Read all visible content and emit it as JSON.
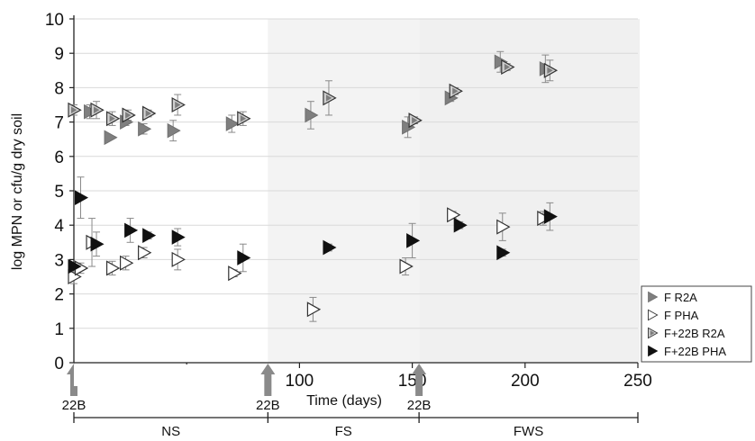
{
  "chart_data": {
    "type": "scatter",
    "title": "",
    "xlabel": "Time (days)",
    "ylabel": "log MPN or cfu/g dry soil",
    "xlim": [
      0,
      250
    ],
    "ylim": [
      0,
      10
    ],
    "x_ticks": [
      50,
      100,
      150,
      200,
      250
    ],
    "y_ticks": [
      0,
      1,
      2,
      3,
      4,
      5,
      6,
      7,
      8,
      9,
      10
    ],
    "grid": "horizontal",
    "legend_position": "right",
    "phases": [
      {
        "label": "NS",
        "start": 0,
        "end": 86,
        "shade": "#ffffff"
      },
      {
        "label": "FS",
        "start": 86,
        "end": 153,
        "shade": "#f3f3f3"
      },
      {
        "label": "FWS",
        "start": 153,
        "end": 255,
        "shade": "#f0f0f0"
      }
    ],
    "arrows": [
      {
        "label": "22B",
        "x": 0
      },
      {
        "label": "22B",
        "x": 86
      },
      {
        "label": "22B",
        "x": 153
      }
    ],
    "series": [
      {
        "name": "F R2A",
        "marker": "filled",
        "color": "#808080",
        "points": [
          {
            "x": 7,
            "y": 7.3,
            "err": 0.2
          },
          {
            "x": 16,
            "y": 6.55,
            "err": 0.05
          },
          {
            "x": 23,
            "y": 7.0,
            "err": 0.1
          },
          {
            "x": 31,
            "y": 6.8,
            "err": 0.15
          },
          {
            "x": 44,
            "y": 6.75,
            "err": 0.3
          },
          {
            "x": 70,
            "y": 6.95,
            "err": 0.25
          },
          {
            "x": 105,
            "y": 7.2,
            "err": 0.4
          },
          {
            "x": 148,
            "y": 6.85,
            "err": 0.3
          },
          {
            "x": 167,
            "y": 7.7,
            "err": 0.1
          },
          {
            "x": 189,
            "y": 8.75,
            "err": 0.3
          },
          {
            "x": 209,
            "y": 8.55,
            "err": 0.4
          }
        ]
      },
      {
        "name": "F PHA",
        "marker": "open",
        "color": "#ffffff",
        "points": [
          {
            "x": 0,
            "y": 2.5,
            "err": 0.2
          },
          {
            "x": 3,
            "y": 2.75,
            "err": 0.15
          },
          {
            "x": 8,
            "y": 3.5,
            "err": 0.7
          },
          {
            "x": 17,
            "y": 2.75,
            "err": 0.2
          },
          {
            "x": 23,
            "y": 2.9,
            "err": 0.2
          },
          {
            "x": 31,
            "y": 3.2,
            "err": 0.15
          },
          {
            "x": 46,
            "y": 3.0,
            "err": 0.3
          },
          {
            "x": 71,
            "y": 2.6,
            "err": 0.1
          },
          {
            "x": 106,
            "y": 1.55,
            "err": 0.35
          },
          {
            "x": 147,
            "y": 2.8,
            "err": 0.25
          },
          {
            "x": 168,
            "y": 4.3,
            "err": 0.1
          },
          {
            "x": 190,
            "y": 3.95,
            "err": 0.4
          },
          {
            "x": 208,
            "y": 4.2,
            "err": 0.2
          }
        ]
      },
      {
        "name": "F+22B R2A",
        "marker": "grey",
        "color": "#c4c4c4",
        "points": [
          {
            "x": 0,
            "y": 7.35,
            "err": 0.15
          },
          {
            "x": 10,
            "y": 7.35,
            "err": 0.25
          },
          {
            "x": 17,
            "y": 7.1,
            "err": 0.2
          },
          {
            "x": 24,
            "y": 7.2,
            "err": 0.15
          },
          {
            "x": 33,
            "y": 7.25,
            "err": 0.1
          },
          {
            "x": 46,
            "y": 7.5,
            "err": 0.3
          },
          {
            "x": 75,
            "y": 7.1,
            "err": 0.2
          },
          {
            "x": 113,
            "y": 7.7,
            "err": 0.5
          },
          {
            "x": 151,
            "y": 7.05,
            "err": 0.1
          },
          {
            "x": 169,
            "y": 7.9,
            "err": 0.1
          },
          {
            "x": 192,
            "y": 8.6,
            "err": 0.1
          },
          {
            "x": 211,
            "y": 8.5,
            "err": 0.3
          }
        ]
      },
      {
        "name": "F+22B PHA",
        "marker": "black",
        "color": "#111111",
        "points": [
          {
            "x": 0,
            "y": 2.8,
            "err": 0.1
          },
          {
            "x": 3,
            "y": 4.8,
            "err": 0.6
          },
          {
            "x": 10,
            "y": 3.45,
            "err": 0.35
          },
          {
            "x": 25,
            "y": 3.85,
            "err": 0.35
          },
          {
            "x": 33,
            "y": 3.7,
            "err": 0.1
          },
          {
            "x": 46,
            "y": 3.65,
            "err": 0.25
          },
          {
            "x": 75,
            "y": 3.05,
            "err": 0.4
          },
          {
            "x": 113,
            "y": 3.35,
            "err": 0.1
          },
          {
            "x": 150,
            "y": 3.55,
            "err": 0.5
          },
          {
            "x": 171,
            "y": 4.0,
            "err": 0.1
          },
          {
            "x": 190,
            "y": 3.2,
            "err": 0.1
          },
          {
            "x": 211,
            "y": 4.25,
            "err": 0.4
          }
        ]
      }
    ]
  }
}
